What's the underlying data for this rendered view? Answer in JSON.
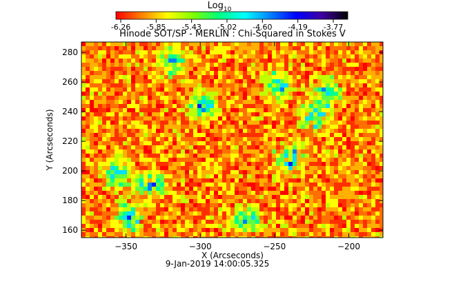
{
  "chart_data": {
    "type": "heatmap",
    "title": "Hinode SOT/SP - MERLIN : Chi-Squared in Stokes V",
    "xlabel": "X (Arcseconds)",
    "ylabel": "Y (Arcseconds)",
    "xlim": [
      -380,
      -177
    ],
    "ylim": [
      155,
      287
    ],
    "xticks": [
      -350,
      -300,
      -250,
      -200
    ],
    "yticks": [
      160,
      180,
      200,
      220,
      240,
      260,
      280
    ],
    "colorbar": {
      "title": "Log",
      "title_subscript": "10",
      "ticks": [
        "-6.26",
        "-5.85",
        "-5.43",
        "-5.02",
        "-4.60",
        "-4.19",
        "-3.77"
      ],
      "range": [
        -6.26,
        -3.77
      ],
      "colors": [
        "#ff0000",
        "#ff8000",
        "#ffff00",
        "#80ff00",
        "#00ff80",
        "#00ffff",
        "#0080ff",
        "#0000ff",
        "#4000a0",
        "#000000"
      ]
    },
    "high_value_regions": [
      {
        "x": -357,
        "y": 200
      },
      {
        "x": -335,
        "y": 192
      },
      {
        "x": -350,
        "y": 170
      },
      {
        "x": -270,
        "y": 168
      },
      {
        "x": -250,
        "y": 260
      },
      {
        "x": -225,
        "y": 240
      },
      {
        "x": -215,
        "y": 255
      },
      {
        "x": -240,
        "y": 210
      },
      {
        "x": -300,
        "y": 245
      },
      {
        "x": -320,
        "y": 275
      }
    ],
    "footer": "9-Jan-2019 14:00:05.325"
  }
}
